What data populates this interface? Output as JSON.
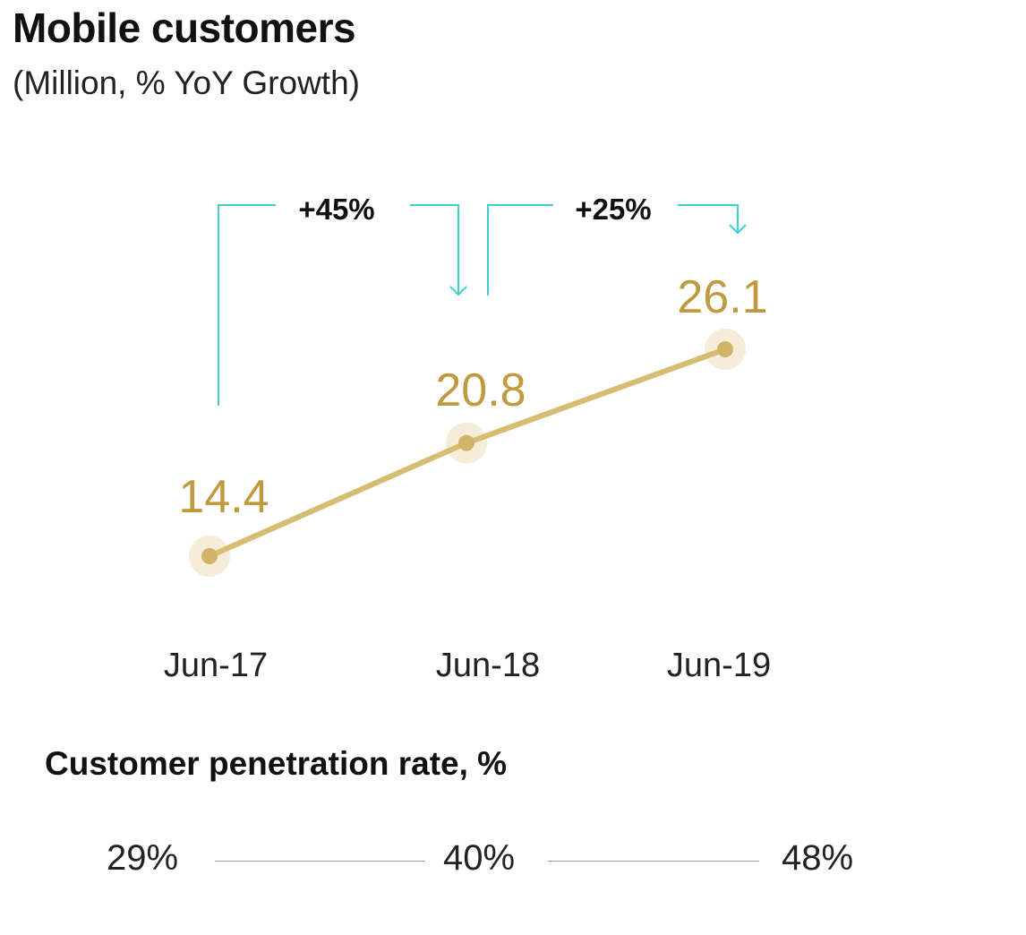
{
  "chart_data": {
    "type": "line",
    "title": "Mobile customers",
    "subtitle": "(Million, % YoY Growth)",
    "categories": [
      "Jun-17",
      "Jun-18",
      "Jun-19"
    ],
    "values": [
      14.4,
      20.8,
      26.1
    ],
    "value_labels": [
      "14.4",
      "20.8",
      "26.1"
    ],
    "growth_annotations": [
      {
        "from": "Jun-17",
        "to": "Jun-18",
        "label": "+45%"
      },
      {
        "from": "Jun-18",
        "to": "Jun-19",
        "label": "+25%"
      }
    ],
    "xlabel": "",
    "ylabel": "",
    "grid": false,
    "legend": "none"
  },
  "penetration": {
    "title": "Customer penetration rate, %",
    "values": [
      "29%",
      "40%",
      "48%"
    ]
  },
  "colors": {
    "line": "#d6bd72",
    "point": "#d1b46a",
    "halo": "#f5ecd9",
    "value_label": "#c19a3f",
    "annotation": "#3ecfcf",
    "separator": "#9a9a9a"
  }
}
